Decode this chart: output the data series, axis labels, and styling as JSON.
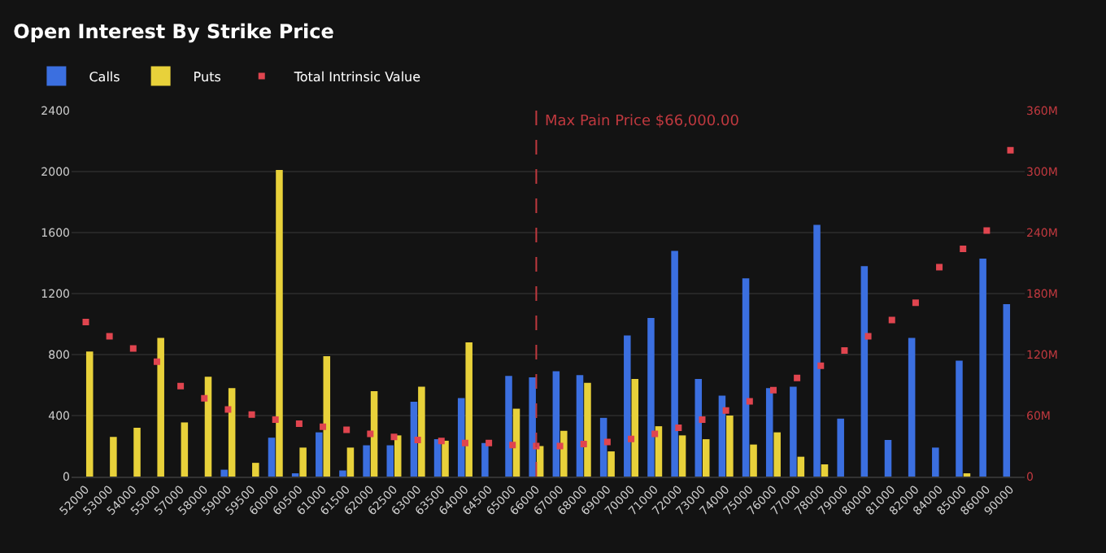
{
  "chart_data": {
    "type": "bar",
    "title": "Open Interest By Strike Price",
    "categories": [
      "52000",
      "53000",
      "54000",
      "55000",
      "57000",
      "58000",
      "59000",
      "59500",
      "60000",
      "60500",
      "61000",
      "61500",
      "62000",
      "62500",
      "63000",
      "63500",
      "64000",
      "64500",
      "65000",
      "66000",
      "67000",
      "68000",
      "69000",
      "70000",
      "71000",
      "72000",
      "73000",
      "74000",
      "75000",
      "76000",
      "77000",
      "78000",
      "79000",
      "80000",
      "81000",
      "82000",
      "84000",
      "85000",
      "86000",
      "90000"
    ],
    "series": [
      {
        "name": "Calls",
        "color": "#3b6fe0",
        "values": [
          0,
          0,
          0,
          0,
          0,
          0,
          45,
          0,
          255,
          15,
          290,
          40,
          205,
          205,
          490,
          245,
          515,
          220,
          660,
          650,
          690,
          665,
          385,
          925,
          1040,
          1480,
          640,
          530,
          1300,
          580,
          590,
          1650,
          380,
          1380,
          240,
          910,
          190,
          760,
          1430,
          1130
        ]
      },
      {
        "name": "Puts",
        "color": "#e8d13a",
        "values": [
          820,
          260,
          320,
          910,
          355,
          655,
          580,
          90,
          2010,
          190,
          790,
          190,
          560,
          270,
          590,
          235,
          880,
          0,
          445,
          200,
          300,
          615,
          165,
          640,
          330,
          270,
          245,
          400,
          210,
          290,
          130,
          80,
          0,
          0,
          0,
          0,
          0,
          20,
          0,
          0
        ]
      },
      {
        "name": "Total Intrinsic Value",
        "type": "scatter",
        "axis": "y2",
        "color": "#e0454f",
        "marker": "square",
        "values": [
          152,
          138,
          126,
          113,
          89,
          77,
          66,
          61,
          56,
          52,
          49,
          46,
          42,
          39,
          36,
          35,
          33,
          33,
          31,
          30,
          30,
          32,
          34,
          37,
          42,
          48,
          56,
          65,
          74,
          85,
          97,
          109,
          124,
          138,
          154,
          171,
          206,
          224,
          242,
          321
        ]
      }
    ],
    "ylim": [
      0,
      2400
    ],
    "yticks": [
      0,
      400,
      800,
      1200,
      1600,
      2000,
      2400
    ],
    "y2lim": [
      0,
      360
    ],
    "y2ticks": [
      {
        "value": 0,
        "label": "0"
      },
      {
        "value": 60,
        "label": "60M"
      },
      {
        "value": 120,
        "label": "120M"
      },
      {
        "value": 180,
        "label": "180M"
      },
      {
        "value": 240,
        "label": "240M"
      },
      {
        "value": 300,
        "label": "300M"
      },
      {
        "value": 360,
        "label": "360M"
      }
    ],
    "ref_lines": [
      {
        "axis": "x",
        "value": "66000",
        "label": "Max Pain Price $66,000.00",
        "color": "#c0393f",
        "line_style": "dashed"
      }
    ],
    "grid": "y",
    "legend": "top left"
  }
}
